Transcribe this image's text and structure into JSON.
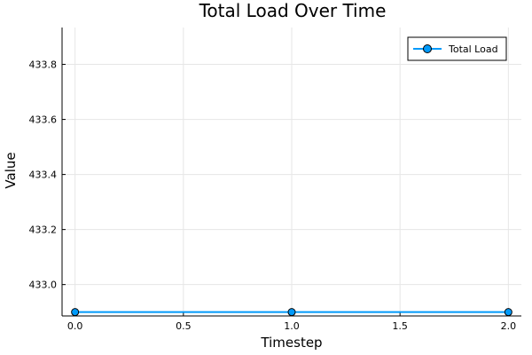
{
  "chart_data": {
    "type": "line",
    "title": "Total Load Over Time",
    "xlabel": "Timestep",
    "ylabel": "Value",
    "x": [
      0,
      1,
      2
    ],
    "series": [
      {
        "name": "Total Load",
        "values": [
          432.9,
          432.9,
          432.9
        ],
        "color": "#009AFA",
        "marker": "circle"
      }
    ],
    "xlim": [
      -0.06,
      2.06
    ],
    "ylim": [
      432.886,
      433.934
    ],
    "xticks": [
      0.0,
      0.5,
      1.0,
      1.5,
      2.0
    ],
    "xtick_labels": [
      "0.0",
      "0.5",
      "1.0",
      "1.5",
      "2.0"
    ],
    "yticks": [
      433.0,
      433.2,
      433.4,
      433.6,
      433.8
    ],
    "ytick_labels": [
      "433.0",
      "433.2",
      "433.4",
      "433.6",
      "433.8"
    ],
    "grid": true,
    "legend_position": "top-right"
  }
}
